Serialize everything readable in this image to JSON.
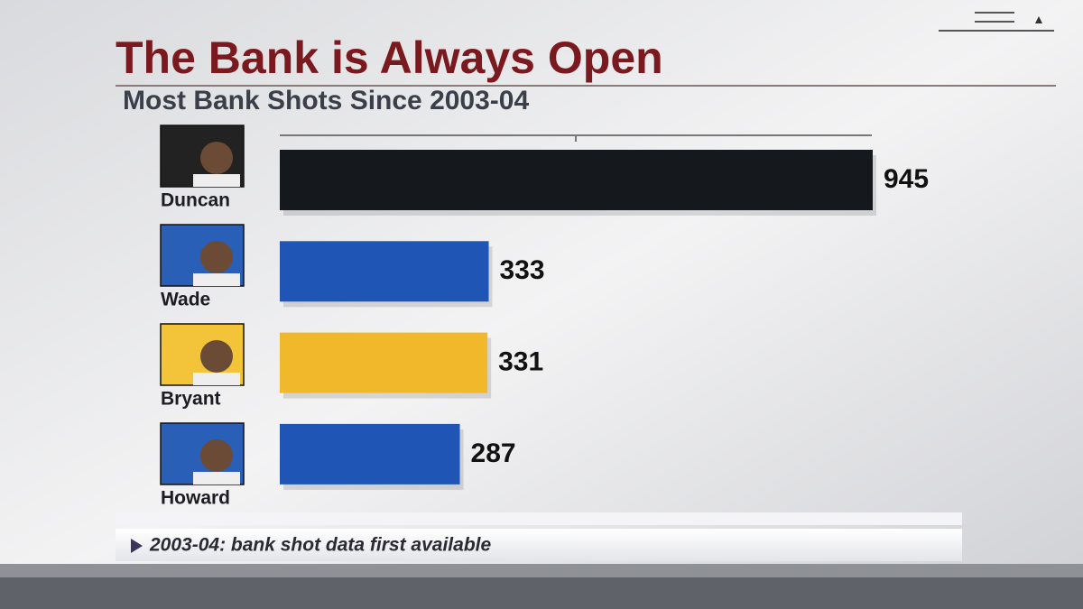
{
  "chart_data": {
    "type": "bar",
    "orientation": "horizontal",
    "title": "The Bank is Always Open",
    "subtitle": "Most Bank Shots Since 2003-04",
    "categories": [
      "Duncan",
      "Wade",
      "Bryant",
      "Howard"
    ],
    "values": [
      945,
      333,
      331,
      287
    ],
    "colors": [
      "#15191e",
      "#1f55b5",
      "#f0b82a",
      "#1f55b5"
    ],
    "xlim": [
      0,
      945
    ],
    "footnote": "2003-04: bank shot data first available"
  }
}
